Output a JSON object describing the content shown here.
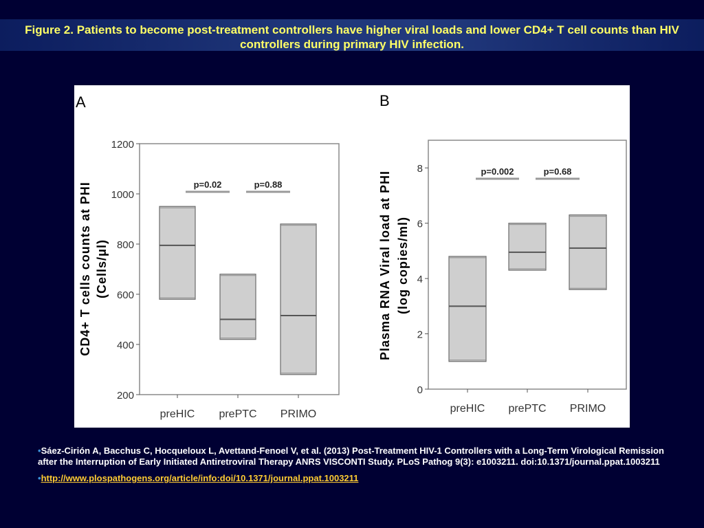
{
  "title": "Figure 2. Patients to become post-treatment controllers have higher viral loads and lower CD4+ T cell counts than HIV controllers during primary HIV infection.",
  "chart_data": [
    {
      "panel": "A",
      "type": "box",
      "ylabel_line1": "CD4+ T cells counts at PHI",
      "ylabel_line2": "(Cells/μl)",
      "ylim": [
        200,
        1200
      ],
      "yticks": [
        200,
        400,
        600,
        800,
        1000,
        1200
      ],
      "categories": [
        "preHIC",
        "prePTC",
        "PRIMO"
      ],
      "boxes": [
        {
          "low": 580,
          "median": 795,
          "high": 950
        },
        {
          "low": 420,
          "median": 500,
          "high": 680
        },
        {
          "low": 280,
          "median": 515,
          "high": 880
        }
      ],
      "annotations": [
        {
          "text": "p=0.02",
          "between": [
            0,
            1
          ]
        },
        {
          "text": "p=0.88",
          "between": [
            1,
            2
          ]
        }
      ]
    },
    {
      "panel": "B",
      "type": "box",
      "ylabel_line1": "Plasma RNA Viral load at PHI",
      "ylabel_line2": "(log copies/ml)",
      "ylim": [
        0,
        9
      ],
      "yticks": [
        0,
        2,
        4,
        6,
        8
      ],
      "categories": [
        "preHIC",
        "prePTC",
        "PRIMO"
      ],
      "boxes": [
        {
          "low": 1.0,
          "median": 3.0,
          "high": 4.8
        },
        {
          "low": 4.3,
          "median": 4.95,
          "high": 6.0
        },
        {
          "low": 3.6,
          "median": 5.1,
          "high": 6.3
        }
      ],
      "annotations": [
        {
          "text": "p=0.002",
          "between": [
            0,
            1
          ]
        },
        {
          "text": "p=0.68",
          "between": [
            1,
            2
          ]
        }
      ]
    }
  ],
  "references": {
    "bullet": "•",
    "citation": "Sáez-Cirión A, Bacchus C, Hocqueloux L, Avettand-Fenoel V, et al. (2013) Post-Treatment HIV-1 Controllers with a Long-Term Virological Remission after the Interruption of Early Initiated Antiretroviral Therapy ANRS VISCONTI Study. PLoS Pathog 9(3): e1003211. doi:10.1371/journal.ppat.1003211",
    "link": "http://www.plospathogens.org/article/info:doi/10.1371/journal.ppat.1003211"
  }
}
